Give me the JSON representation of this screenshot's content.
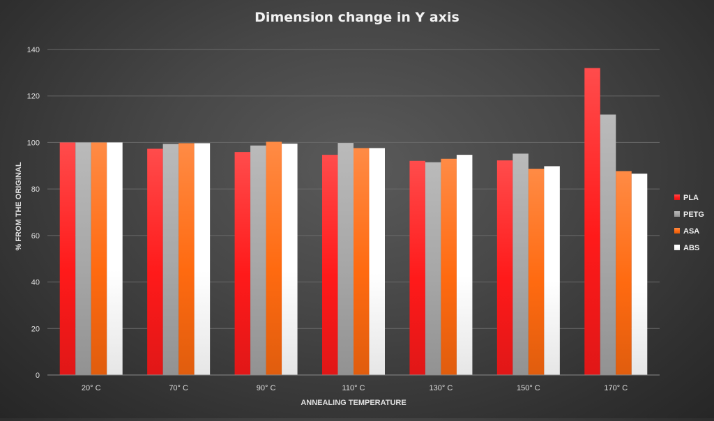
{
  "chart_data": {
    "type": "bar",
    "title": "Dimension change in Y axis",
    "xlabel": "ANNEALING TEMPERATURE",
    "ylabel": "% FROM THE ORIGINAL",
    "categories": [
      "20° C",
      "70° C",
      "90° C",
      "110° C",
      "130° C",
      "150° C",
      "170° C"
    ],
    "ylim": [
      0,
      140
    ],
    "yticks": [
      0,
      20,
      40,
      60,
      80,
      100,
      120,
      140
    ],
    "grid": true,
    "legend_position": "right",
    "series": [
      {
        "name": "PLA",
        "color": "#ff1a1a",
        "values": [
          100,
          97.3,
          95.9,
          94.7,
          92.1,
          92.3,
          132
        ]
      },
      {
        "name": "PETG",
        "color": "#a6a6a6",
        "values": [
          100,
          99.4,
          98.7,
          99.8,
          91.5,
          95.2,
          112
        ]
      },
      {
        "name": "ASA",
        "color": "#ff6a10",
        "values": [
          100,
          99.7,
          100.3,
          97.6,
          93.0,
          88.7,
          87.7
        ]
      },
      {
        "name": "ABS",
        "color": "#ffffff",
        "values": [
          100,
          99.7,
          99.5,
          97.6,
          94.7,
          89.8,
          86.6
        ]
      }
    ]
  }
}
